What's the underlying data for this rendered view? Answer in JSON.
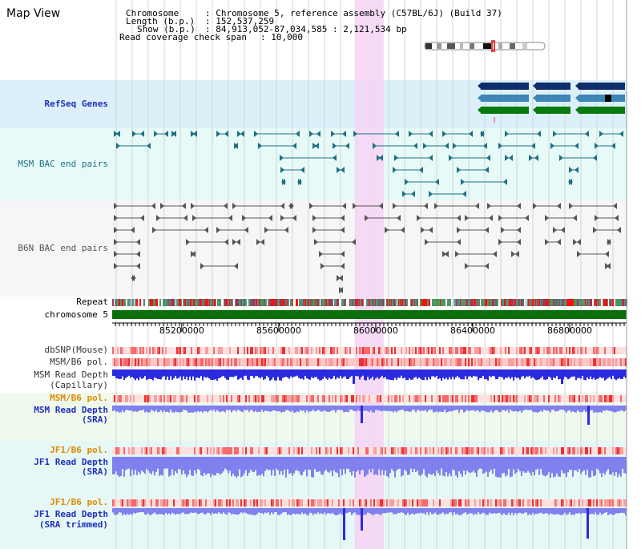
{
  "page_title": "Map View",
  "info": {
    "chromosome_key": "Chromosome",
    "chromosome_value": "Chromosome 5, reference assembly (C57BL/6J) (Build 37)",
    "length_key": "Length (b.p.)",
    "length_value": "152,537,259",
    "show_key": "Show (b.p.)",
    "show_value": "84,913,052-87,034,585 : 2,121,534 bp",
    "coverage_key": "Read coverage check span",
    "coverage_value": "10,000"
  },
  "view": {
    "start_bp": 84913052,
    "end_bp": 87034585
  },
  "highlight": {
    "start_bp": 85913052,
    "end_bp": 86033052
  },
  "tracks": {
    "refseq": "RefSeq Genes",
    "msm_bac": "MSM BAC end pairs",
    "b6n_bac": "B6N BAC end pairs",
    "repeat": "Repeat",
    "chromosome": "chromosome 5",
    "dbsnp": "dbSNP(Mouse)",
    "msm_b6_pol": "MSM/B6 pol.",
    "msm_read_cap_1": "MSM Read Depth",
    "msm_read_cap_2": "(Capillary)",
    "msm_b6_pol_2": "MSM/B6 pol.",
    "msm_read_sra_1": "MSM Read Depth",
    "msm_read_sra_2": "(SRA)",
    "jf1_b6_pol": "JF1/B6 pol.",
    "jf1_read_sra_1": "JF1 Read Depth",
    "jf1_read_sra_2": "(SRA)",
    "jf1_b6_pol_2": "JF1/B6 pol.",
    "jf1_trim_1": "JF1 Read Depth",
    "jf1_trim_2": "(SRA trimmed)"
  },
  "axis_ticks": [
    {
      "bp": 85200000,
      "label": "85200000"
    },
    {
      "bp": 85600000,
      "label": "85600000"
    },
    {
      "bp": 86000000,
      "label": "86000000"
    },
    {
      "bp": 86400000,
      "label": "86400000"
    },
    {
      "bp": 86800000,
      "label": "86800000"
    }
  ],
  "colors": {
    "refseq_dark": "#0f2d6a",
    "refseq_mid": "#3d86b5",
    "refseq_green": "#0a7a10",
    "msm_bac": "#1f6f86",
    "b6n_bac": "#555555",
    "chromosome": "#0a6e0a",
    "highlight": "#f6d3f4",
    "repeat_red": "#ff1010",
    "read_blue": "#2a2ae0",
    "read_light": "#8080ee",
    "label_blue": "#1f2fbe",
    "label_orange": "#e08a00"
  }
}
